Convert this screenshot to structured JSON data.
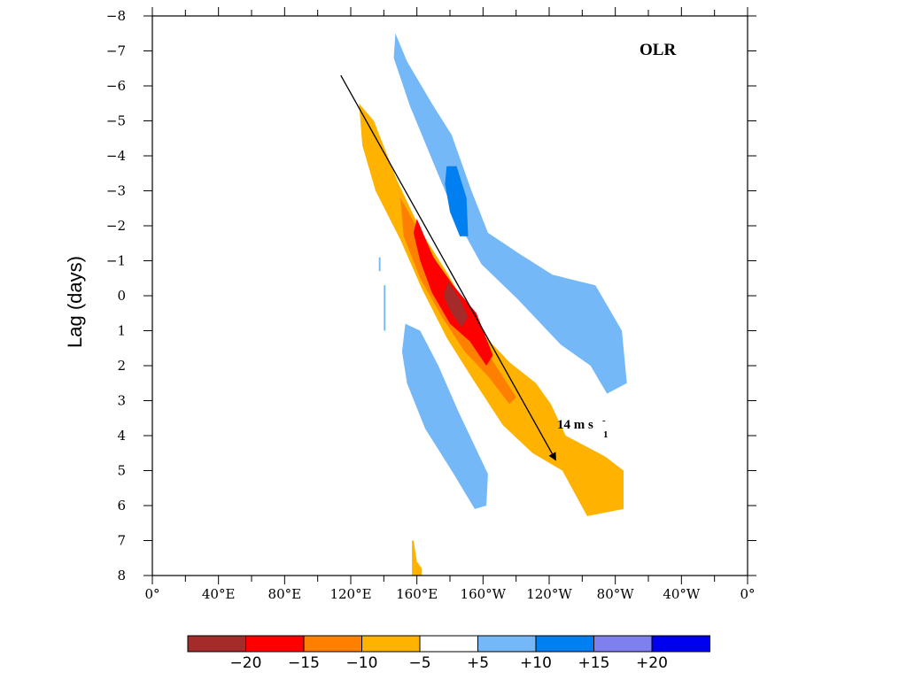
{
  "chart_data": {
    "type": "heatmap",
    "title": "OLR",
    "xlabel": "",
    "ylabel": "Lag (days)",
    "x_tick_labels": [
      "0°",
      "40°E",
      "80°E",
      "120°E",
      "160°E",
      "160°W",
      "120°W",
      "80°W",
      "40°W",
      "0°"
    ],
    "x_tick_lon": [
      0,
      40,
      80,
      120,
      160,
      200,
      240,
      280,
      320,
      360
    ],
    "xlim": [
      0,
      360
    ],
    "y_ticks": [
      -8,
      -7,
      -6,
      -5,
      -4,
      -3,
      -2,
      -1,
      0,
      1,
      2,
      3,
      4,
      5,
      6,
      7,
      8
    ],
    "y_tick_labels": [
      "−8",
      "−7",
      "−6",
      "−5",
      "−4",
      "−3",
      "−2",
      "−1",
      "0",
      "1",
      "2",
      "3",
      "4",
      "5",
      "6",
      "7",
      "8"
    ],
    "ylim": [
      -8,
      8
    ],
    "y_inverted": true,
    "grid": false,
    "colorbar": {
      "labels": [
        "−20",
        "−15",
        "−10",
        "−5",
        "+5",
        "+10",
        "+15",
        "+20"
      ],
      "colors": [
        "#a52a2a",
        "#ff0000",
        "#ff7f00",
        "#ffb300",
        "#ffffff",
        "#75b8f8",
        "#0080f0",
        "#7f7ff0",
        "#0000f0"
      ]
    },
    "shaded_regions": [
      {
        "level": "+5",
        "color": "#75b8f8",
        "polygon": [
          [
            147,
            -7.5
          ],
          [
            154,
            -6.7
          ],
          [
            169,
            -5.5
          ],
          [
            181,
            -4.6
          ],
          [
            193,
            -3.0
          ],
          [
            203,
            -1.8
          ],
          [
            222,
            -1.2
          ],
          [
            242,
            -0.6
          ],
          [
            268,
            -0.3
          ],
          [
            284,
            1.0
          ],
          [
            287,
            2.5
          ],
          [
            275,
            2.8
          ],
          [
            265,
            2.0
          ],
          [
            247,
            1.4
          ],
          [
            221,
            0.1
          ],
          [
            199,
            -0.9
          ],
          [
            185,
            -2.1
          ],
          [
            170,
            -3.8
          ],
          [
            156,
            -5.4
          ],
          [
            146,
            -6.8
          ]
        ]
      },
      {
        "level": "+10",
        "color": "#0080f0",
        "polygon": [
          [
            178,
            -3.7
          ],
          [
            184,
            -3.7
          ],
          [
            190,
            -2.8
          ],
          [
            191,
            -1.7
          ],
          [
            186,
            -1.7
          ],
          [
            180,
            -2.4
          ],
          [
            177,
            -3.2
          ]
        ]
      },
      {
        "level": "+5",
        "color": "#75b8f8",
        "polygon": [
          [
            153,
            0.8
          ],
          [
            162,
            1.0
          ],
          [
            173,
            2.0
          ],
          [
            185,
            3.3
          ],
          [
            203,
            5.1
          ],
          [
            202,
            6.0
          ],
          [
            195,
            6.1
          ],
          [
            181,
            5.0
          ],
          [
            165,
            3.8
          ],
          [
            154,
            2.5
          ],
          [
            151,
            1.6
          ]
        ]
      },
      {
        "level": "+5",
        "color": "#75b8f8",
        "polygon": [
          [
            140,
            -0.3
          ],
          [
            141,
            -0.3
          ],
          [
            141,
            1.0
          ],
          [
            140,
            1.0
          ]
        ]
      },
      {
        "level": "+5",
        "color": "#75b8f8",
        "polygon": [
          [
            137,
            -1.1
          ],
          [
            138,
            -1.1
          ],
          [
            138,
            -0.7
          ],
          [
            137,
            -0.7
          ]
        ]
      },
      {
        "level": "−5",
        "color": "#ffb300",
        "polygon": [
          [
            125,
            -5.5
          ],
          [
            134,
            -5.0
          ],
          [
            148,
            -3.3
          ],
          [
            163,
            -1.8
          ],
          [
            179,
            -0.6
          ],
          [
            198,
            1.0
          ],
          [
            216,
            1.9
          ],
          [
            232,
            2.5
          ],
          [
            241,
            3.1
          ],
          [
            250,
            4.0
          ],
          [
            274,
            4.6
          ],
          [
            285,
            5.0
          ],
          [
            285,
            6.1
          ],
          [
            263,
            6.3
          ],
          [
            248,
            5.0
          ],
          [
            230,
            4.5
          ],
          [
            212,
            3.7
          ],
          [
            194,
            2.4
          ],
          [
            178,
            1.2
          ],
          [
            163,
            -0.2
          ],
          [
            150,
            -1.6
          ],
          [
            135,
            -3.0
          ],
          [
            127,
            -4.3
          ]
        ]
      },
      {
        "level": "−5",
        "color": "#ffb300",
        "polygon": [
          [
            157,
            7.0
          ],
          [
            158,
            7.0
          ],
          [
            160,
            7.6
          ],
          [
            163,
            7.8
          ],
          [
            163,
            8.0
          ],
          [
            157,
            8.0
          ]
        ]
      },
      {
        "level": "−10",
        "color": "#ff7f00",
        "polygon": [
          [
            150,
            -2.8
          ],
          [
            162,
            -1.8
          ],
          [
            174,
            -0.8
          ],
          [
            189,
            0.3
          ],
          [
            205,
            1.8
          ],
          [
            220,
            2.9
          ],
          [
            216,
            3.1
          ],
          [
            203,
            2.3
          ],
          [
            189,
            1.6
          ],
          [
            175,
            0.6
          ],
          [
            162,
            -0.5
          ],
          [
            152,
            -1.7
          ]
        ]
      },
      {
        "level": "−15",
        "color": "#ff0000",
        "polygon": [
          [
            160,
            -2.2
          ],
          [
            170,
            -1.1
          ],
          [
            182,
            -0.3
          ],
          [
            196,
            0.5
          ],
          [
            206,
            1.7
          ],
          [
            202,
            2.0
          ],
          [
            192,
            1.3
          ],
          [
            180,
            0.8
          ],
          [
            169,
            -0.1
          ],
          [
            162,
            -1.0
          ],
          [
            158,
            -1.8
          ]
        ]
      },
      {
        "level": "−20",
        "color": "#a52a2a",
        "polygon": [
          [
            179,
            -0.4
          ],
          [
            186,
            0.1
          ],
          [
            191,
            0.6
          ],
          [
            187,
            0.9
          ],
          [
            181,
            0.5
          ],
          [
            176,
            0.0
          ]
        ]
      }
    ],
    "annotations": [
      {
        "type": "arrow",
        "from": [
          114,
          -6.3
        ],
        "to": [
          244,
          4.7
        ]
      },
      {
        "type": "text",
        "text": "14 m s",
        "superscript": "-",
        "subscript": "1"
      }
    ]
  }
}
